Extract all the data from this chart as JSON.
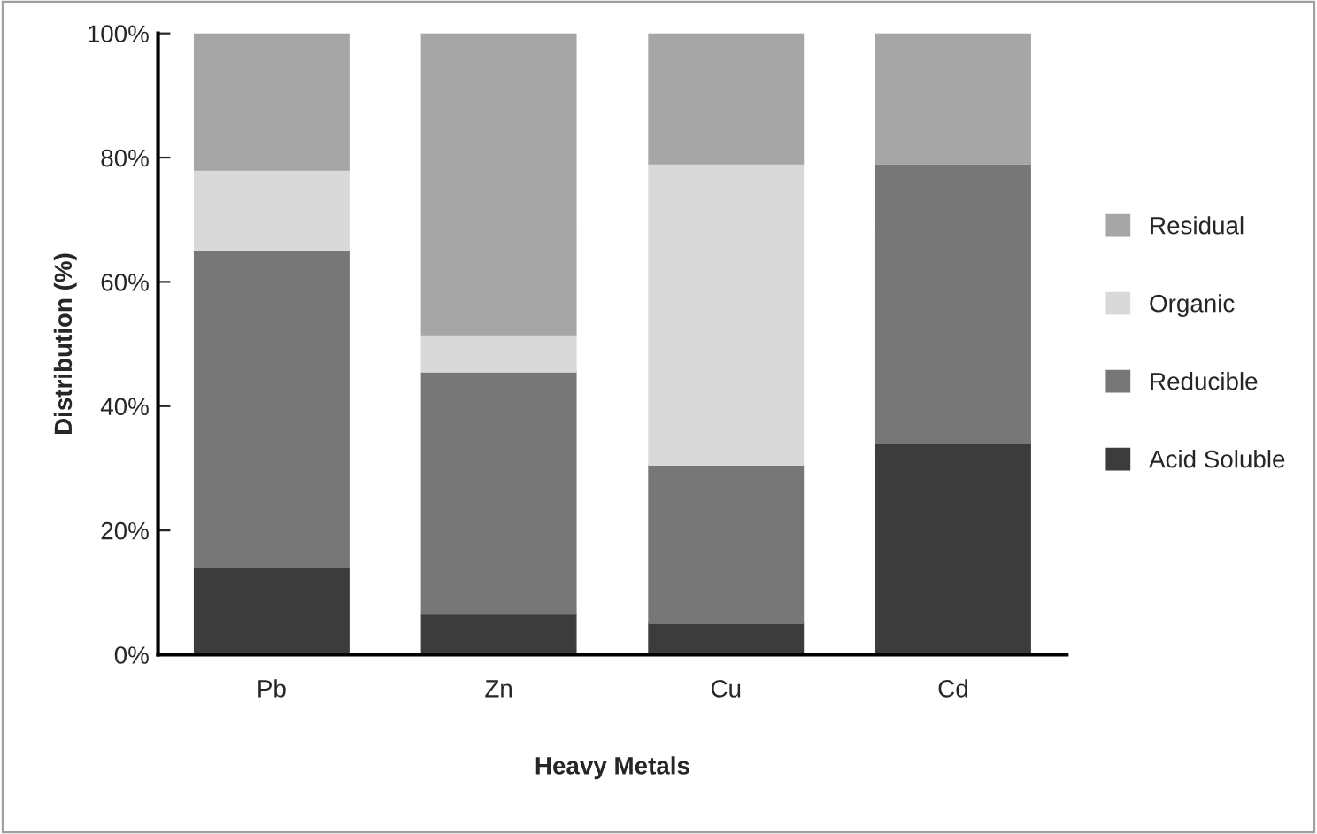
{
  "chart_data": {
    "type": "bar",
    "stacked": true,
    "xlabel": "Heavy Metals",
    "ylabel": "Distribution (%)",
    "categories": [
      "Pb",
      "Zn",
      "Cu",
      "Cd"
    ],
    "series": [
      {
        "name": "Acid Soluble",
        "color": "#3c3c3c",
        "values": [
          14,
          6.5,
          5,
          34
        ]
      },
      {
        "name": "Reducible",
        "color": "#777777",
        "values": [
          51,
          39,
          25.5,
          45
        ]
      },
      {
        "name": "Organic",
        "color": "#d9d9d9",
        "values": [
          13,
          6,
          48.5,
          0
        ]
      },
      {
        "name": "Residual",
        "color": "#a6a6a6",
        "values": [
          22,
          48.5,
          21,
          21
        ]
      }
    ],
    "ylim": [
      0,
      100
    ],
    "yticks": [
      {
        "value": 0,
        "label": "0%"
      },
      {
        "value": 20,
        "label": "20%"
      },
      {
        "value": 40,
        "label": "40%"
      },
      {
        "value": 60,
        "label": "60%"
      },
      {
        "value": 80,
        "label": "80%"
      },
      {
        "value": 100,
        "label": "100%"
      }
    ],
    "grid": false,
    "legend": "right"
  }
}
